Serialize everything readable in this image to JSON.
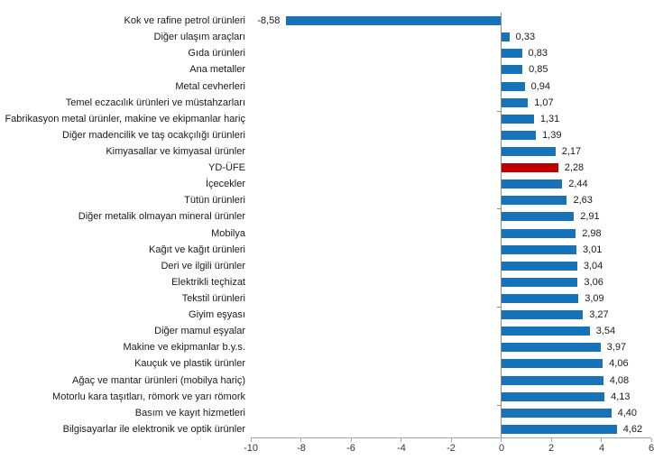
{
  "chart_data": {
    "type": "bar",
    "orientation": "horizontal",
    "title": "",
    "xlabel": "",
    "ylabel": "",
    "xlim": [
      -10,
      6
    ],
    "x_ticks": [
      -10,
      -8,
      -6,
      -4,
      -2,
      0,
      2,
      4,
      6
    ],
    "x_tick_labels": [
      "-10",
      "-8",
      "-6",
      "-4",
      "-2",
      "0",
      "2",
      "4",
      "6"
    ],
    "grid": false,
    "legend_position": "none",
    "bar_color": "#1673ba",
    "highlight_color": "#c00000",
    "highlight_category": "YD-ÜFE",
    "categories": [
      "Kok ve rafine petrol ürünleri",
      "Diğer ulaşım araçları",
      "Gıda ürünleri",
      "Ana metaller",
      "Metal cevherleri",
      "Temel eczacılık ürünleri ve müstahzarları",
      "Fabrikasyon metal ürünler, makine ve ekipmanlar hariç",
      "Diğer madencilik ve taş ocakçılığı ürünleri",
      "Kimyasallar ve kimyasal ürünler",
      "YD-ÜFE",
      "İçecekler",
      "Tütün ürünleri",
      "Diğer metalik olmayan mineral ürünler",
      "Mobilya",
      "Kağıt ve kağıt ürünleri",
      "Deri ve ilgili ürünler",
      "Elektrikli teçhizat",
      "Tekstil ürünleri",
      "Giyim eşyası",
      "Diğer mamul eşyalar",
      "Makine ve ekipmanlar b.y.s.",
      "Kauçuk ve plastik ürünler",
      "Ağaç ve mantar ürünleri (mobilya hariç)",
      "Motorlu kara taşıtları, römork ve yarı römork",
      "Basım ve kayıt hizmetleri",
      "Bilgisayarlar ile elektronik ve optik ürünler"
    ],
    "values": [
      -8.58,
      0.33,
      0.83,
      0.85,
      0.94,
      1.07,
      1.31,
      1.39,
      2.17,
      2.28,
      2.44,
      2.63,
      2.91,
      2.98,
      3.01,
      3.04,
      3.06,
      3.09,
      3.27,
      3.54,
      3.97,
      4.06,
      4.08,
      4.13,
      4.4,
      4.62
    ],
    "value_labels": [
      "-8,58",
      "0,33",
      "0,83",
      "0,85",
      "0,94",
      "1,07",
      "1,31",
      "1,39",
      "2,17",
      "2,28",
      "2,44",
      "2,63",
      "2,91",
      "2,98",
      "3,01",
      "3,04",
      "3,06",
      "3,09",
      "3,27",
      "3,54",
      "3,97",
      "4,06",
      "4,08",
      "4,13",
      "4,40",
      "4,62"
    ]
  }
}
